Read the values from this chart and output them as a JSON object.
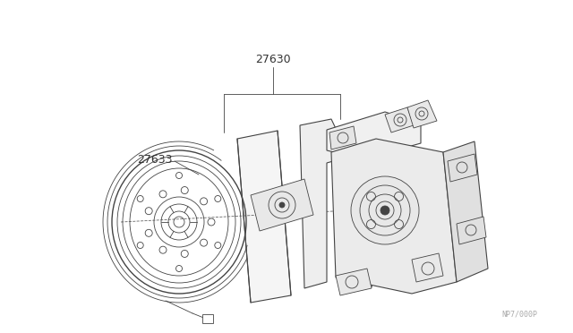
{
  "bg_color": "#ffffff",
  "line_color": "#444444",
  "label_color": "#333333",
  "part_number_27630": "27630",
  "part_number_27633": "27633",
  "watermark": "NP7/000P",
  "fig_width": 6.4,
  "fig_height": 3.72,
  "dpi": 100,
  "lw_outer": 1.0,
  "lw_thin": 0.6,
  "lw_med": 0.8
}
